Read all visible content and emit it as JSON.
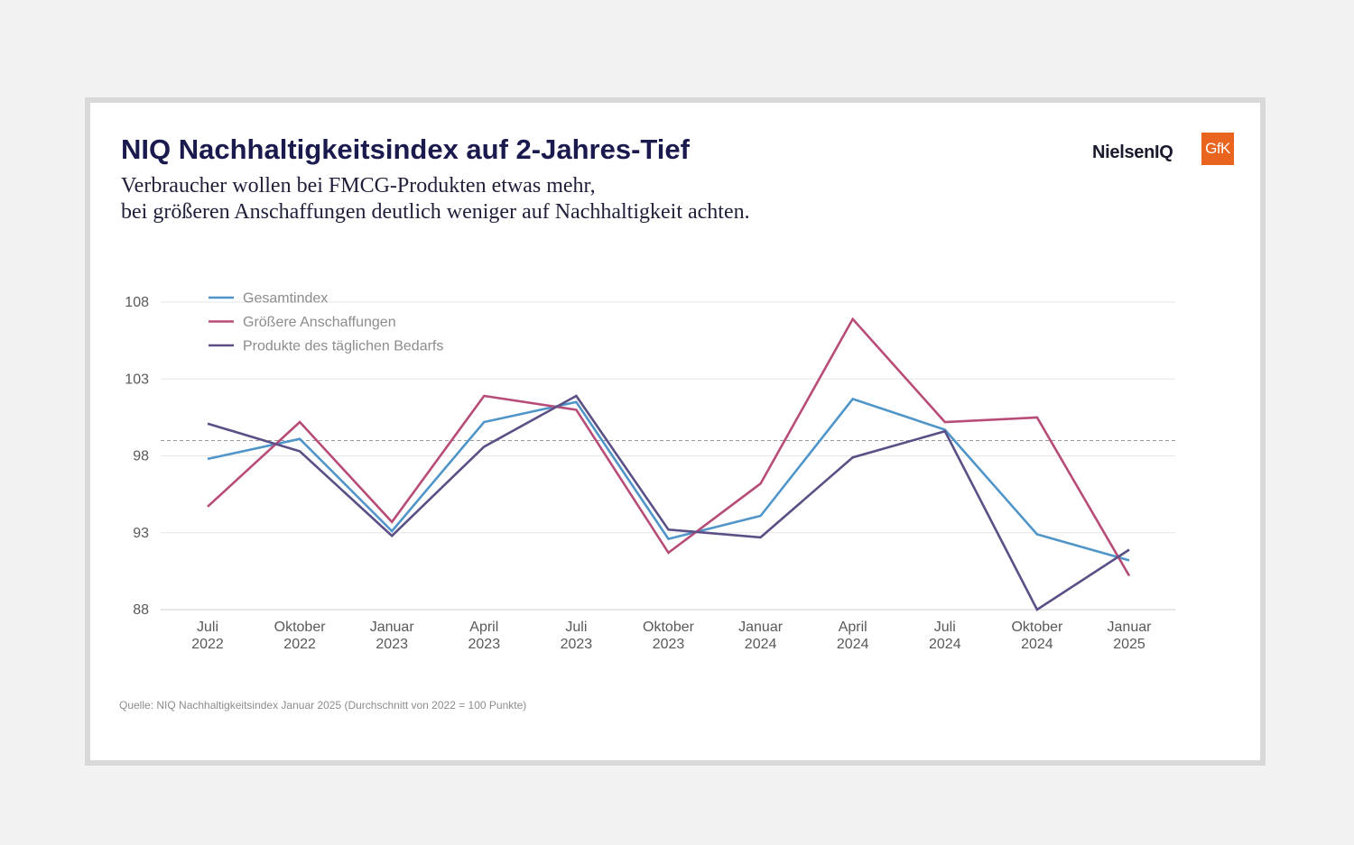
{
  "header": {
    "title": "NIQ Nachhaltigkeitsindex auf 2-Jahres-Tief",
    "subtitle_line1": "Verbraucher wollen bei FMCG-Produkten etwas mehr,",
    "subtitle_line2": "bei größeren Anschaffungen deutlich weniger auf Nachhaltigkeit achten."
  },
  "logos": {
    "niq": "NielsenIQ",
    "gfk": "GfK",
    "gfk_color": "#e8641f"
  },
  "source": "Quelle: NIQ Nachhaltigkeitsindex Januar 2025 (Durchschnitt von 2022 = 100 Punkte)",
  "chart_data": {
    "type": "line",
    "title": "NIQ Nachhaltigkeitsindex auf 2-Jahres-Tief",
    "xlabel": "",
    "ylabel": "",
    "categories": [
      [
        "Juli",
        "2022"
      ],
      [
        "Oktober",
        "2022"
      ],
      [
        "Januar",
        "2023"
      ],
      [
        "April",
        "2023"
      ],
      [
        "Juli",
        "2023"
      ],
      [
        "Oktober",
        "2023"
      ],
      [
        "Januar",
        "2024"
      ],
      [
        "April",
        "2024"
      ],
      [
        "Juli",
        "2024"
      ],
      [
        "Oktober",
        "2024"
      ],
      [
        "Januar",
        "2025"
      ]
    ],
    "ylim": [
      88,
      108
    ],
    "yticks": [
      88,
      93,
      98,
      103,
      108
    ],
    "reference_line": 99,
    "grid": true,
    "legend_position": "top-left",
    "series": [
      {
        "name": "Gesamtindex",
        "color": "#4f95c9",
        "values": [
          97.8,
          99.1,
          93.1,
          100.2,
          101.5,
          92.6,
          94.1,
          101.7,
          99.7,
          92.9,
          91.2
        ]
      },
      {
        "name": "Größere Anschaffungen",
        "color": "#b84c78",
        "values": [
          94.7,
          100.2,
          93.7,
          101.9,
          101.0,
          91.7,
          96.2,
          106.9,
          100.2,
          100.5,
          90.2
        ]
      },
      {
        "name": "Produkte des täglichen Bedarfs",
        "color": "#5b4f86",
        "values": [
          100.1,
          98.3,
          92.8,
          98.6,
          101.9,
          93.2,
          92.7,
          97.9,
          99.6,
          88.0,
          91.9
        ]
      }
    ]
  }
}
